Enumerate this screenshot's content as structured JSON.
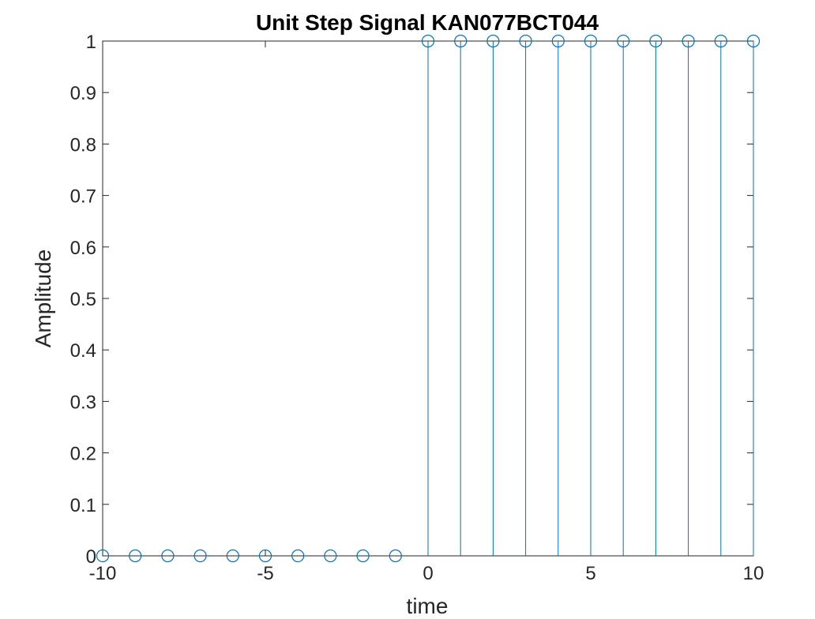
{
  "chart_data": {
    "type": "stem",
    "title": "Unit Step Signal KAN077BCT044",
    "xlabel": "time",
    "ylabel": "Amplitude",
    "xlim": [
      -10,
      10
    ],
    "ylim": [
      0,
      1
    ],
    "x_ticks": [
      -10,
      -5,
      0,
      5,
      10
    ],
    "y_ticks": [
      0,
      0.1,
      0.2,
      0.3,
      0.4,
      0.5,
      0.6,
      0.7,
      0.8,
      0.9,
      1
    ],
    "x": [
      -10,
      -9,
      -8,
      -7,
      -6,
      -5,
      -4,
      -3,
      -2,
      -1,
      0,
      1,
      2,
      3,
      4,
      5,
      6,
      7,
      8,
      9,
      10
    ],
    "y": [
      0,
      0,
      0,
      0,
      0,
      0,
      0,
      0,
      0,
      0,
      1,
      1,
      1,
      1,
      1,
      1,
      1,
      1,
      1,
      1,
      1
    ],
    "grid": false,
    "marker": "open-circle",
    "colors": {
      "stem": "#0072BD",
      "axes": "#262626",
      "title": "#000000",
      "background": "#ffffff"
    }
  }
}
